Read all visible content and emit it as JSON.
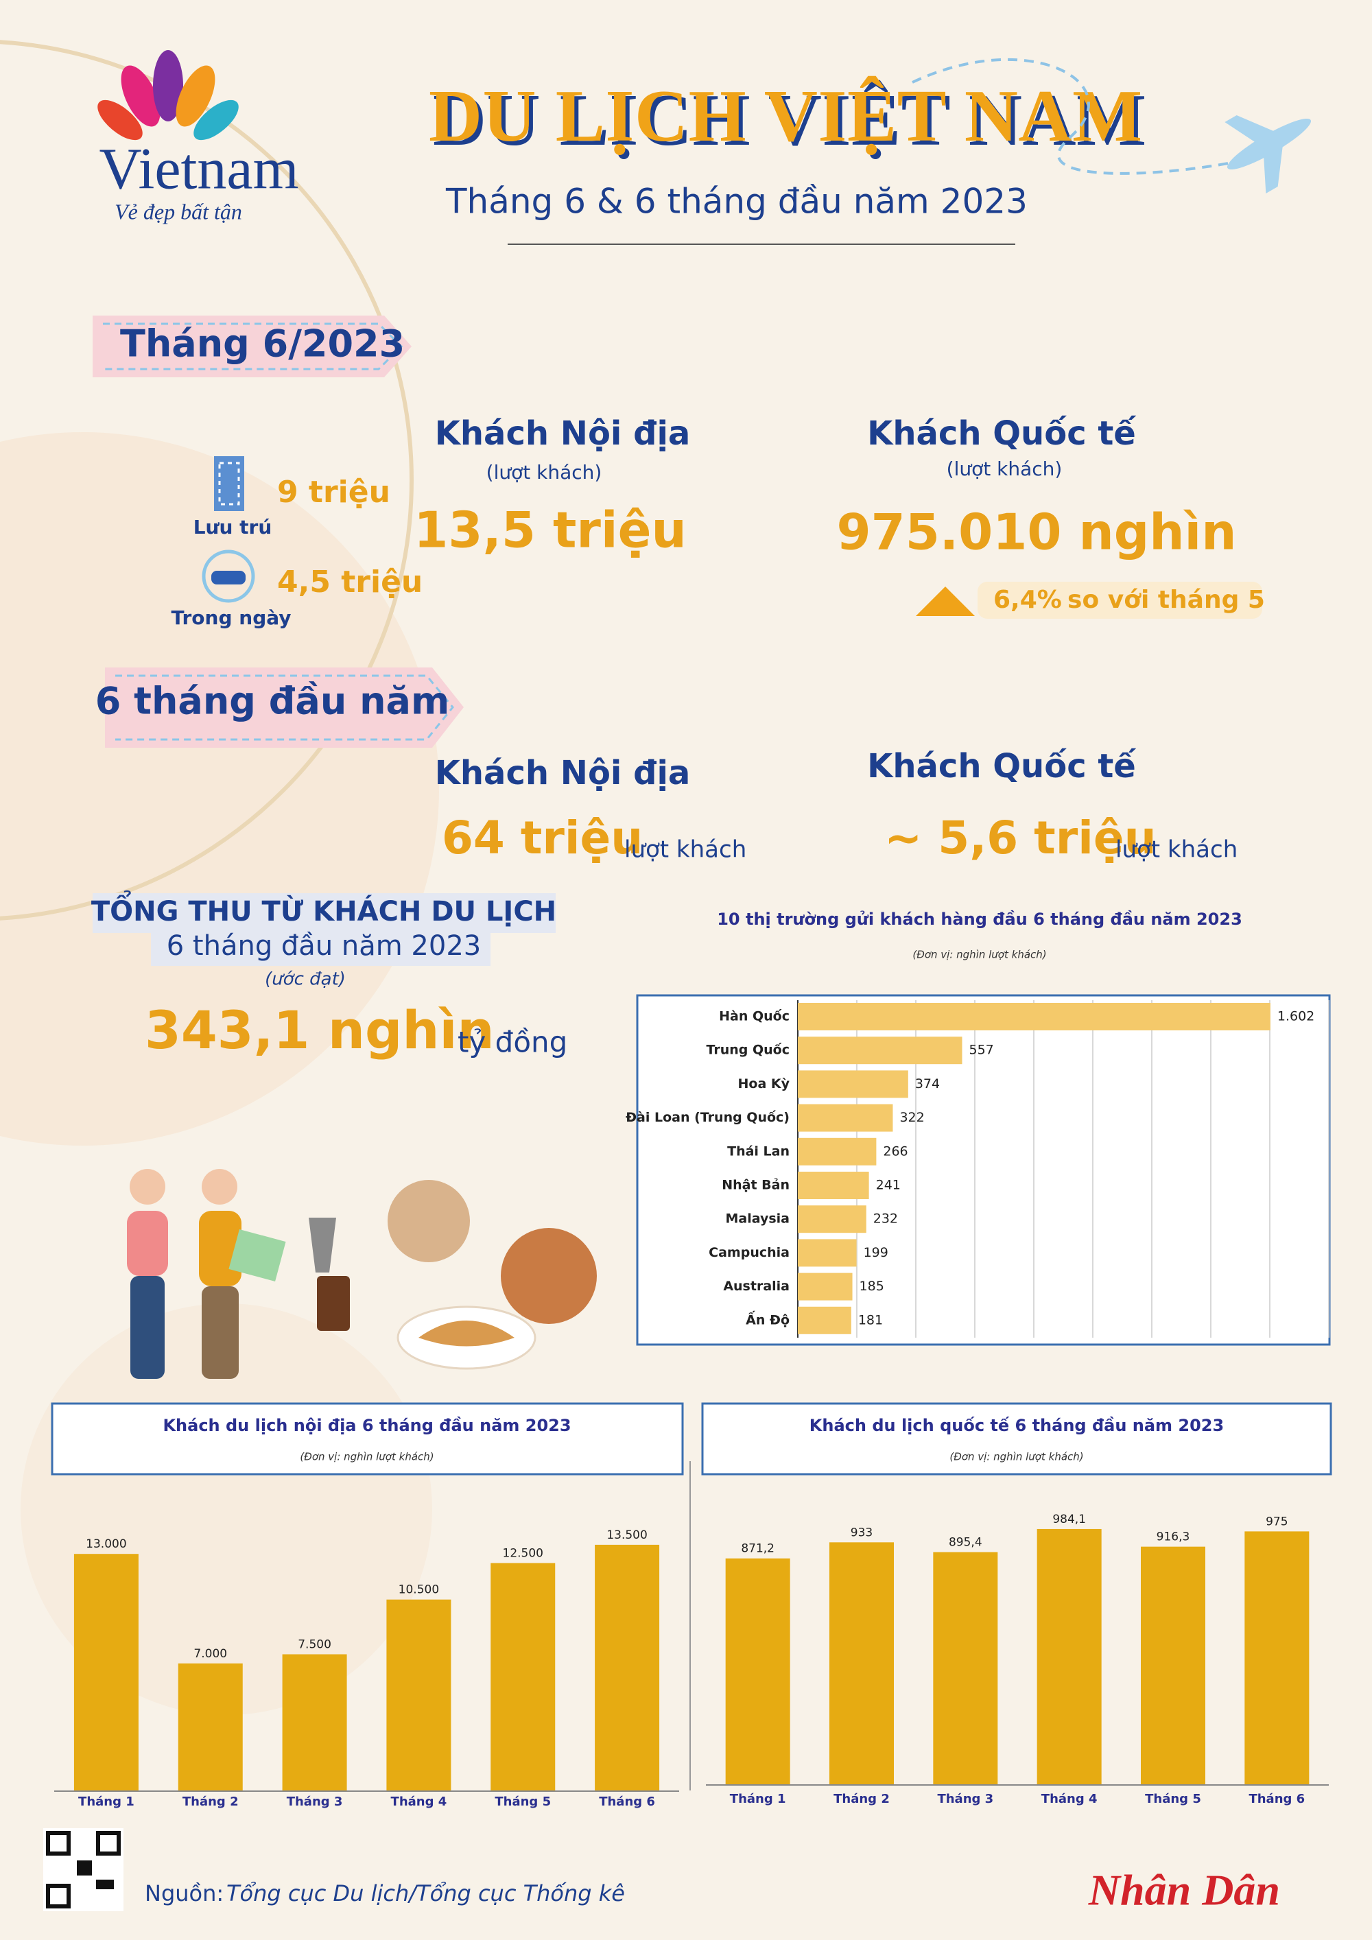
{
  "logo": {
    "name": "Vietnam",
    "slogan": "Vẻ đẹp bất tận"
  },
  "header": {
    "title": "DU LỊCH VIỆT NAM",
    "subtitle": "Tháng 6 & 6 tháng đầu năm 2023"
  },
  "june": {
    "tag": "Tháng 6/2023",
    "domestic": {
      "label": "Khách Nội địa",
      "unit": "(lượt khách)",
      "value": "13,5 triệu",
      "breakdown": [
        {
          "value": "9 triệu",
          "label": "Lưu trú"
        },
        {
          "value": "4,5 triệu",
          "label": "Trong ngày"
        }
      ]
    },
    "international": {
      "label": "Khách Quốc tế",
      "unit": "(lượt khách)",
      "value": "975.010 nghìn",
      "change": "6,4%",
      "comparison": "so với tháng 5"
    }
  },
  "half_year": {
    "tag": "6 tháng đầu năm",
    "domestic": {
      "label": "Khách Nội địa",
      "value": "64 triệu",
      "unit": "lượt khách"
    },
    "international": {
      "label": "Khách Quốc tế",
      "value": "~ 5,6 triệu",
      "unit": "lượt khách"
    }
  },
  "revenue": {
    "title": "TỔNG THU TỪ KHÁCH DU LỊCH",
    "period": "6 tháng đầu năm 2023",
    "note": "(ước đạt)",
    "value": "343,1 nghìn",
    "unit": "tỷ đồng"
  },
  "chart_data": [
    {
      "type": "bar",
      "orientation": "horizontal",
      "title": "10 thị trường gửi khách hàng đầu 6 tháng đầu năm 2023",
      "subtitle": "(Đơn vị: nghìn lượt khách)",
      "categories": [
        "Hàn Quốc",
        "Trung Quốc",
        "Hoa Kỳ",
        "Đài Loan (Trung Quốc)",
        "Thái Lan",
        "Nhật Bản",
        "Malaysia",
        "Campuchia",
        "Australia",
        "Ấn Độ"
      ],
      "values": [
        1602,
        557,
        374,
        322,
        266,
        241,
        232,
        199,
        185,
        181
      ],
      "value_labels": [
        "1.602",
        "557",
        "374",
        "322",
        "266",
        "241",
        "232",
        "199",
        "185",
        "181"
      ],
      "color": "#f4c96a",
      "xlim": [
        0,
        1800
      ],
      "xticks": [
        0,
        200,
        400,
        600,
        800,
        1000,
        1200,
        1400,
        1600,
        1800
      ],
      "grid": true
    },
    {
      "type": "bar",
      "orientation": "vertical",
      "title": "Khách du lịch nội địa 6 tháng đầu năm 2023",
      "subtitle": "(Đơn vị: nghìn lượt khách)",
      "categories": [
        "Tháng 1",
        "Tháng 2",
        "Tháng 3",
        "Tháng 4",
        "Tháng 5",
        "Tháng 6"
      ],
      "values": [
        13000,
        7000,
        7500,
        10500,
        12500,
        13500
      ],
      "value_labels": [
        "13.000",
        "7.000",
        "7.500",
        "10.500",
        "12.500",
        "13.500"
      ],
      "color": "#e6ab12",
      "ylim": [
        0,
        15000
      ],
      "grid": false
    },
    {
      "type": "bar",
      "orientation": "vertical",
      "title": "Khách du lịch quốc tế 6 tháng đầu năm 2023",
      "subtitle": "(Đơn vị: nghìn lượt khách)",
      "categories": [
        "Tháng 1",
        "Tháng 2",
        "Tháng 3",
        "Tháng 4",
        "Tháng 5",
        "Tháng 6"
      ],
      "values": [
        871.2,
        933,
        895.4,
        984.1,
        916.3,
        975
      ],
      "value_labels": [
        "871,2",
        "933",
        "895,4",
        "984,1",
        "916,3",
        "975"
      ],
      "color": "#e6ab12",
      "ylim": [
        0,
        1100
      ],
      "grid": false
    }
  ],
  "footer": {
    "source_label": "Nguồn:",
    "source": "Tổng cục Du lịch/Tổng cục Thống kê",
    "brand": "Nhân Dân"
  }
}
